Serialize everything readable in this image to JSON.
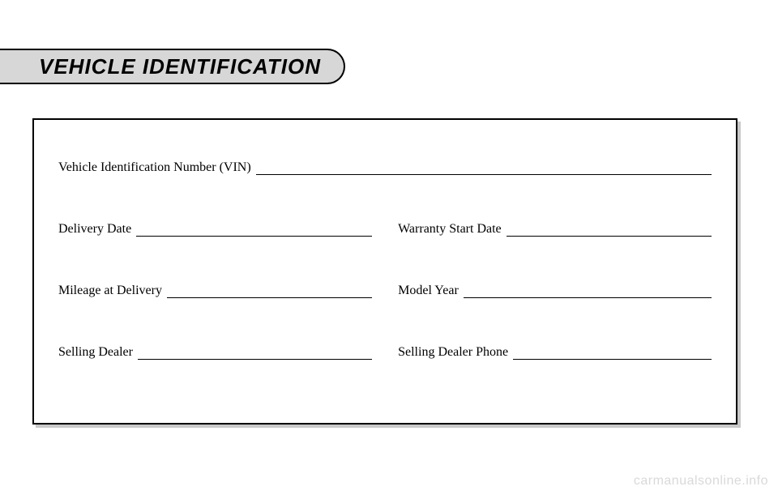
{
  "header": {
    "title": "VEHICLE IDENTIFICATION"
  },
  "fields": {
    "vin_label": "Vehicle Identification Number (VIN)",
    "delivery_date_label": "Delivery Date",
    "warranty_start_label": "Warranty Start Date",
    "mileage_label": "Mileage at Delivery",
    "model_year_label": "Model Year",
    "selling_dealer_label": "Selling Dealer",
    "selling_dealer_phone_label": "Selling Dealer Phone"
  },
  "watermark": "carmanualsonline.info",
  "styling": {
    "page_bg": "#ffffff",
    "band_bg": "#d7d7d7",
    "band_border": "#000000",
    "band_title_fontsize": 26,
    "form_border": "#000000",
    "form_shadow": "#c9c9c9",
    "label_fontsize": 16,
    "line_color": "#000000",
    "watermark_color": "#d9d9d9"
  }
}
